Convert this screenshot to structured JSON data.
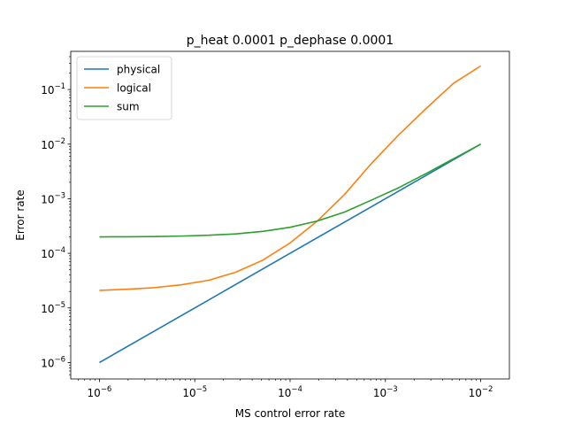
{
  "chart_data": {
    "type": "line",
    "title": "p_heat 0.0001 p_dephase 0.0001",
    "xlabel": "MS control error rate",
    "ylabel": "Error rate",
    "xscale": "log",
    "yscale": "log",
    "xlim": [
      5e-07,
      0.02
    ],
    "ylim": [
      5e-07,
      0.5
    ],
    "grid": false,
    "legend_position": "top-left",
    "xticks": [
      {
        "value": 1e-06,
        "base": "10",
        "exp": "−6"
      },
      {
        "value": 1e-05,
        "base": "10",
        "exp": "−5"
      },
      {
        "value": 0.0001,
        "base": "10",
        "exp": "−4"
      },
      {
        "value": 0.001,
        "base": "10",
        "exp": "−3"
      },
      {
        "value": 0.01,
        "base": "10",
        "exp": "−2"
      }
    ],
    "yticks": [
      {
        "value": 1e-06,
        "base": "10",
        "exp": "−6"
      },
      {
        "value": 1e-05,
        "base": "10",
        "exp": "−5"
      },
      {
        "value": 0.0001,
        "base": "10",
        "exp": "−4"
      },
      {
        "value": 0.001,
        "base": "10",
        "exp": "−3"
      },
      {
        "value": 0.01,
        "base": "10",
        "exp": "−2"
      },
      {
        "value": 0.1,
        "base": "10",
        "exp": "−1"
      }
    ],
    "series": [
      {
        "name": "physical",
        "color": "#1f77b4",
        "x": [
          1e-06,
          1e-05,
          0.0001,
          0.001,
          0.01
        ],
        "y": [
          1e-06,
          1e-05,
          0.0001,
          0.001,
          0.01
        ]
      },
      {
        "name": "logical",
        "color": "#ff7f0e",
        "x": [
          1e-06,
          1.93e-06,
          3.73e-06,
          7.2e-06,
          1.39e-05,
          2.68e-05,
          5.18e-05,
          0.0001,
          0.000193,
          0.000373,
          0.00072,
          0.00139,
          0.00268,
          0.00518,
          0.01
        ],
        "y": [
          2.1e-05,
          2.2e-05,
          2.35e-05,
          2.65e-05,
          3.2e-05,
          4.5e-05,
          7.5e-05,
          0.000155,
          0.00039,
          0.0012,
          0.0045,
          0.015,
          0.045,
          0.13,
          0.27
        ]
      },
      {
        "name": "sum",
        "color": "#2ca02c",
        "x": [
          1e-06,
          1.93e-06,
          3.73e-06,
          7.2e-06,
          1.39e-05,
          2.68e-05,
          5.18e-05,
          0.0001,
          0.000193,
          0.000373,
          0.00072,
          0.00139,
          0.00268,
          0.00518,
          0.01
        ],
        "y": [
          0.0002,
          0.000201,
          0.000203,
          0.000207,
          0.000214,
          0.000227,
          0.000252,
          0.0003,
          0.00039,
          0.00057,
          0.00095,
          0.0016,
          0.0029,
          0.0054,
          0.01
        ]
      }
    ]
  }
}
